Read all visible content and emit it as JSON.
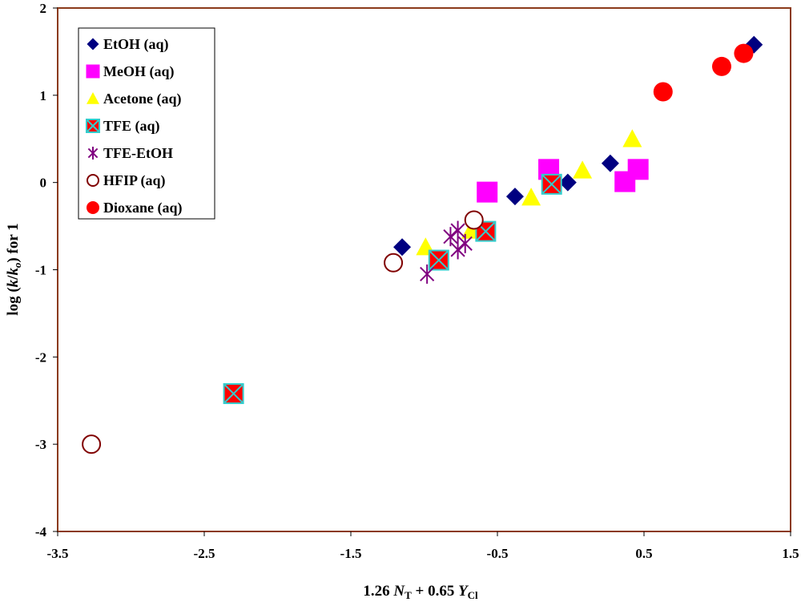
{
  "chart_data": {
    "type": "scatter",
    "title": "",
    "xlabel": {
      "coef1": "1.26",
      "var1": "N",
      "sub1": "T",
      "plus": "+",
      "coef2": "0.65",
      "var2": "Y",
      "sub2": "Cl"
    },
    "ylabel": {
      "prefix": "log (",
      "k": "k",
      "slash": "/",
      "k0": "k",
      "k0sub": "o",
      "suffix": ") for 1"
    },
    "xlim": [
      -3.5,
      1.5
    ],
    "ylim": [
      -4,
      2
    ],
    "xticks": [
      "-3.5",
      "-2.5",
      "-1.5",
      "-0.5",
      "0.5",
      "1.5"
    ],
    "yticks": [
      "-4",
      "-3",
      "-2",
      "-1",
      "0",
      "1",
      "2"
    ],
    "legend_position": "top-left",
    "colors": {
      "frame": "#8B3A1A",
      "legend_border": "#000000"
    },
    "series": [
      {
        "name": "EtOH (aq)",
        "marker": "diamond",
        "color": "#000080",
        "points": [
          [
            -1.15,
            -0.74
          ],
          [
            -0.38,
            -0.16
          ],
          [
            -0.02,
            0.0
          ],
          [
            0.27,
            0.22
          ],
          [
            1.25,
            1.58
          ]
        ]
      },
      {
        "name": "MeOH (aq)",
        "marker": "square",
        "color": "#FF00FF",
        "points": [
          [
            -0.57,
            -0.11
          ],
          [
            -0.15,
            0.15
          ],
          [
            0.37,
            0.01
          ],
          [
            0.46,
            0.15
          ]
        ]
      },
      {
        "name": "Acetone (aq)",
        "marker": "triangle",
        "color": "#FFFF00",
        "points": [
          [
            -0.99,
            -0.74
          ],
          [
            -0.68,
            -0.55
          ],
          [
            -0.27,
            -0.17
          ],
          [
            0.08,
            0.14
          ],
          [
            0.42,
            0.5
          ]
        ]
      },
      {
        "name": "TFE (aq)",
        "marker": "square-x",
        "color": "#FF0000",
        "accent": "#33CCCC",
        "points": [
          [
            -2.3,
            -2.42
          ],
          [
            -0.9,
            -0.89
          ],
          [
            -0.58,
            -0.56
          ],
          [
            -0.13,
            -0.02
          ]
        ]
      },
      {
        "name": "TFE-EtOH",
        "marker": "star",
        "color": "#800080",
        "points": [
          [
            -0.98,
            -1.05
          ],
          [
            -0.82,
            -0.62
          ],
          [
            -0.77,
            -0.77
          ],
          [
            -0.77,
            -0.55
          ],
          [
            -0.72,
            -0.7
          ]
        ]
      },
      {
        "name": "HFIP (aq)",
        "marker": "circle-open",
        "color": "#800000",
        "points": [
          [
            -3.27,
            -3.0
          ],
          [
            -1.21,
            -0.92
          ],
          [
            -0.66,
            -0.43
          ]
        ]
      },
      {
        "name": "Dioxane (aq)",
        "marker": "circle",
        "color": "#FF0000",
        "points": [
          [
            0.63,
            1.04
          ],
          [
            1.03,
            1.33
          ],
          [
            1.18,
            1.48
          ]
        ]
      }
    ]
  }
}
